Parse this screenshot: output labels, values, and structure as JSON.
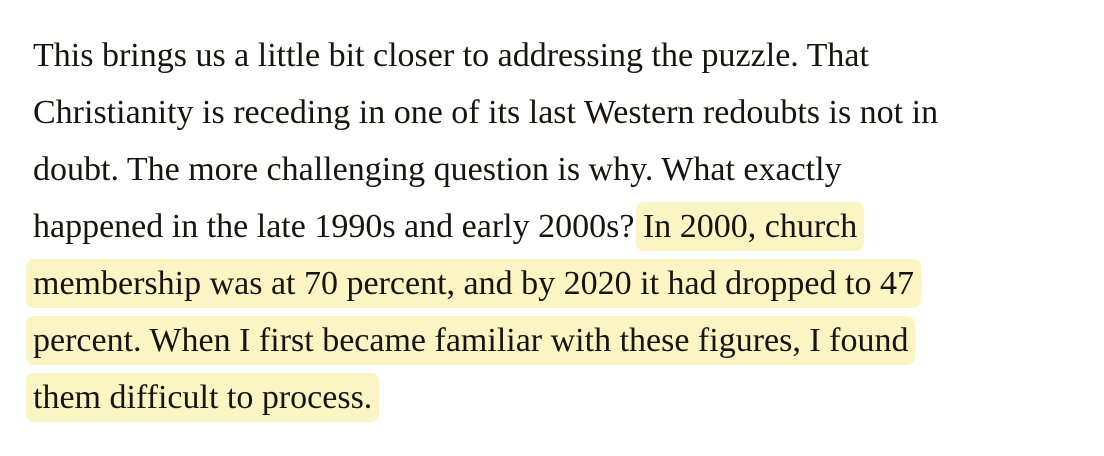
{
  "paragraph": {
    "full_text": "This brings us a little bit closer to addressing the puzzle. That Christianity is receding in one of its last Western redoubts is not in doubt. The more challenging question is why. What exactly happened in the late 1990s and early 2000s? In 2000, church membership was at 70 percent, and by 2020 it had dropped to 47 percent. When I first became familiar with these figures, I found them difficult to process.",
    "highlight_color": "#fbf5c3",
    "text_color": "#171513",
    "lines": [
      {
        "pre": "This brings us a little bit closer to addressing the puzzle. That",
        "hl": ""
      },
      {
        "pre": "Christianity is receding in one of its last Western redoubts is not in",
        "hl": ""
      },
      {
        "pre": "doubt. The more challenging question is why. What exactly",
        "hl": ""
      },
      {
        "pre": "happened in the late 1990s and early 2000s? ",
        "hl": "In 2000, church"
      },
      {
        "pre": "",
        "hl": "membership was at 70 percent, and by 2020 it had dropped to 47"
      },
      {
        "pre": "",
        "hl": "percent. When I first became familiar with these figures, I found"
      },
      {
        "pre": "",
        "hl": "them difficult to process."
      }
    ]
  }
}
